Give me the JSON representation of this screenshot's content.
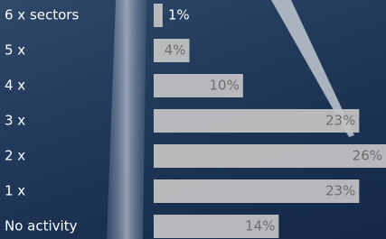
{
  "chart_data": {
    "type": "bar",
    "orientation": "horizontal",
    "categories": [
      "6 x sectors",
      "5 x",
      "4 x",
      "3 x",
      "2 x",
      "1 x",
      "No activity"
    ],
    "values": [
      1,
      4,
      10,
      23,
      26,
      23,
      14
    ],
    "value_labels": [
      "1%",
      "4%",
      "10%",
      "23%",
      "26%",
      "23%",
      "14%"
    ],
    "color": "#c4c4c4"
  }
}
